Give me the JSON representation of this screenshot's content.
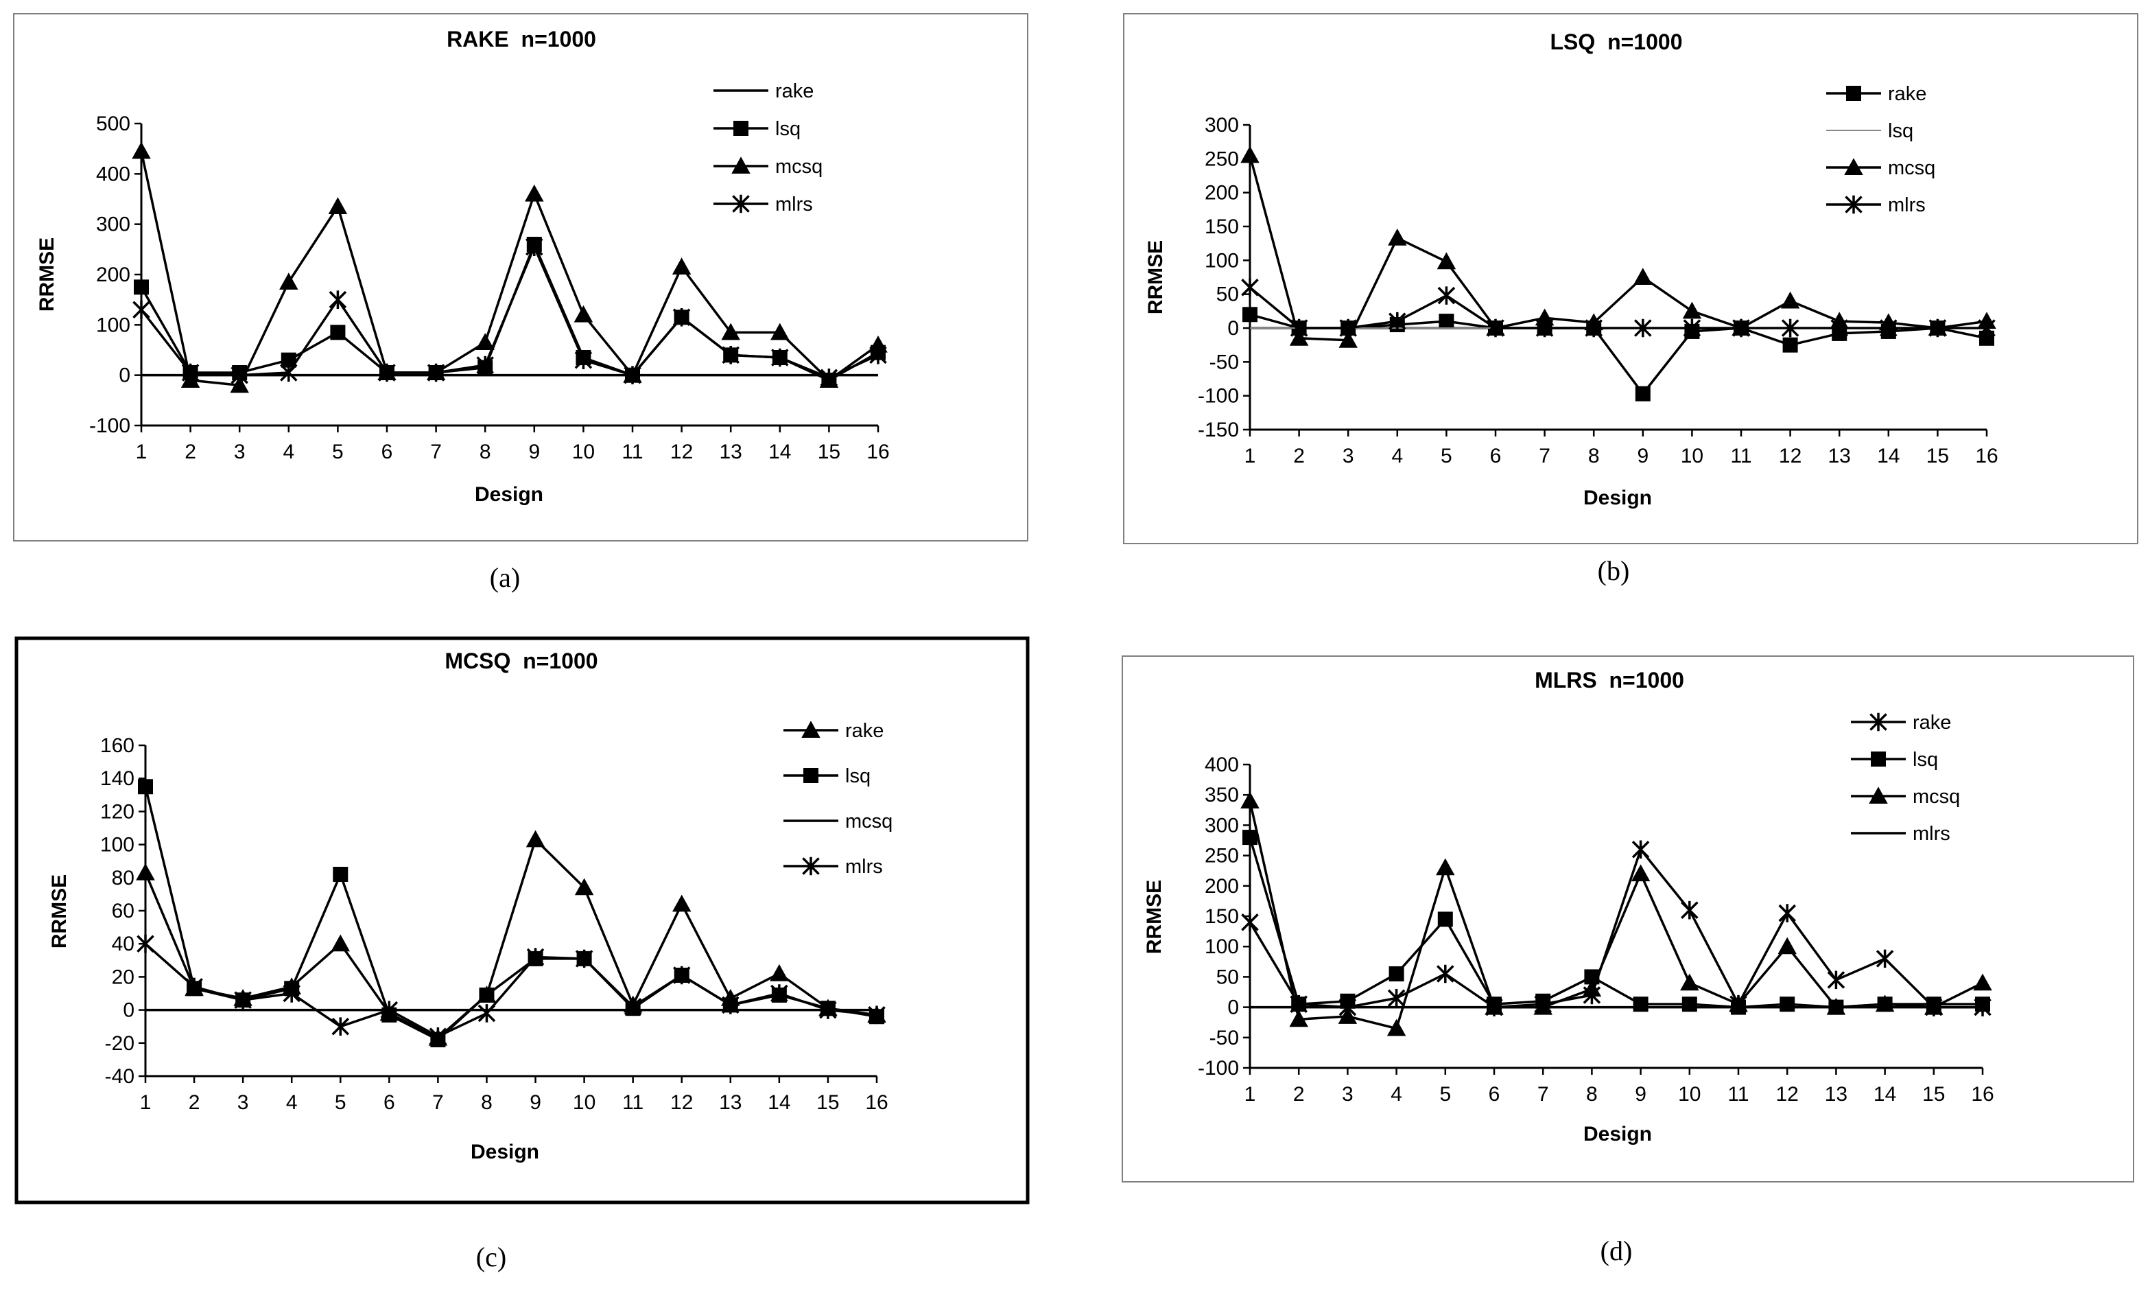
{
  "chart_data": [
    {
      "id": "a",
      "type": "line",
      "title": "RAKE  n=1000",
      "caption": "(a)",
      "xlabel": "Design",
      "ylabel": "RRMSE",
      "categories": [
        "1",
        "2",
        "3",
        "4",
        "5",
        "6",
        "7",
        "8",
        "9",
        "10",
        "11",
        "12",
        "13",
        "14",
        "15",
        "16"
      ],
      "ylim": [
        -100,
        500
      ],
      "yticks": [
        -100,
        0,
        100,
        200,
        300,
        400,
        500
      ],
      "series": [
        {
          "name": "rake",
          "marker": "none",
          "values": [
            0,
            0,
            0,
            0,
            0,
            0,
            0,
            0,
            0,
            0,
            0,
            0,
            0,
            0,
            0,
            0
          ]
        },
        {
          "name": "lsq",
          "marker": "square",
          "values": [
            175,
            5,
            5,
            30,
            85,
            5,
            5,
            15,
            260,
            35,
            0,
            115,
            40,
            35,
            -10,
            45
          ]
        },
        {
          "name": "mcsq",
          "marker": "triangle",
          "values": [
            445,
            -10,
            -20,
            185,
            335,
            5,
            5,
            65,
            360,
            120,
            0,
            215,
            85,
            85,
            -10,
            60
          ]
        },
        {
          "name": "mlrs",
          "marker": "star",
          "values": [
            130,
            5,
            0,
            5,
            150,
            5,
            5,
            20,
            255,
            30,
            0,
            115,
            40,
            35,
            -5,
            40
          ]
        }
      ]
    },
    {
      "id": "b",
      "type": "line",
      "title": "LSQ  n=1000",
      "caption": "(b)",
      "xlabel": "Design",
      "ylabel": "RRMSE",
      "categories": [
        "1",
        "2",
        "3",
        "4",
        "5",
        "6",
        "7",
        "8",
        "9",
        "10",
        "11",
        "12",
        "13",
        "14",
        "15",
        "16"
      ],
      "ylim": [
        -150,
        300
      ],
      "yticks": [
        -150,
        -100,
        -50,
        0,
        50,
        100,
        150,
        200,
        250,
        300
      ],
      "series": [
        {
          "name": "rake",
          "marker": "square",
          "values": [
            20,
            0,
            0,
            5,
            10,
            0,
            0,
            0,
            -97,
            -5,
            0,
            -25,
            -8,
            -5,
            0,
            -15
          ]
        },
        {
          "name": "lsq",
          "marker": "none",
          "thin": true,
          "values": [
            0,
            0,
            0,
            0,
            0,
            0,
            0,
            0,
            0,
            0,
            0,
            0,
            0,
            0,
            0,
            0
          ]
        },
        {
          "name": "mcsq",
          "marker": "triangle",
          "values": [
            255,
            -15,
            -18,
            133,
            98,
            0,
            15,
            8,
            75,
            25,
            0,
            40,
            10,
            8,
            0,
            10
          ]
        },
        {
          "name": "mlrs",
          "marker": "star",
          "values": [
            60,
            0,
            0,
            10,
            48,
            0,
            0,
            0,
            0,
            0,
            0,
            0,
            0,
            0,
            0,
            0
          ]
        }
      ]
    },
    {
      "id": "c",
      "type": "line",
      "title": "MCSQ  n=1000",
      "caption": "(c)",
      "xlabel": "Design",
      "ylabel": "RRMSE",
      "categories": [
        "1",
        "2",
        "3",
        "4",
        "5",
        "6",
        "7",
        "8",
        "9",
        "10",
        "11",
        "12",
        "13",
        "14",
        "15",
        "16"
      ],
      "ylim": [
        -40,
        160
      ],
      "yticks": [
        -40,
        -20,
        0,
        20,
        40,
        60,
        80,
        100,
        120,
        140,
        160
      ],
      "series": [
        {
          "name": "rake",
          "marker": "triangle",
          "values": [
            83,
            13,
            7,
            14,
            40,
            -2,
            -17,
            9,
            103,
            74,
            3,
            64,
            7,
            22,
            1,
            -3
          ]
        },
        {
          "name": "lsq",
          "marker": "square",
          "values": [
            135,
            13,
            6,
            13,
            82,
            -3,
            -18,
            9,
            31,
            31,
            1,
            21,
            3,
            9,
            1,
            -4
          ]
        },
        {
          "name": "mcsq",
          "marker": "none",
          "values": [
            0,
            0,
            0,
            0,
            0,
            0,
            0,
            0,
            0,
            0,
            0,
            0,
            0,
            0,
            0,
            0
          ]
        },
        {
          "name": "mlrs",
          "marker": "star",
          "values": [
            40,
            14,
            6,
            10,
            -10,
            0,
            -16,
            -2,
            32,
            31,
            2,
            21,
            3,
            10,
            0,
            -3
          ]
        }
      ]
    },
    {
      "id": "d",
      "type": "line",
      "title": "MLRS  n=1000",
      "caption": "(d)",
      "xlabel": "Design",
      "ylabel": "RRMSE",
      "categories": [
        "1",
        "2",
        "3",
        "4",
        "5",
        "6",
        "7",
        "8",
        "9",
        "10",
        "11",
        "12",
        "13",
        "14",
        "15",
        "16"
      ],
      "ylim": [
        -100,
        400
      ],
      "yticks": [
        -100,
        -50,
        0,
        50,
        100,
        150,
        200,
        250,
        300,
        350,
        400
      ],
      "series": [
        {
          "name": "rake",
          "marker": "star",
          "values": [
            140,
            5,
            0,
            15,
            55,
            0,
            5,
            20,
            260,
            160,
            5,
            155,
            45,
            80,
            0,
            0
          ]
        },
        {
          "name": "lsq",
          "marker": "square",
          "values": [
            280,
            5,
            10,
            55,
            145,
            5,
            10,
            50,
            5,
            5,
            0,
            5,
            0,
            5,
            5,
            5
          ]
        },
        {
          "name": "mcsq",
          "marker": "triangle",
          "values": [
            340,
            -20,
            -15,
            -35,
            230,
            0,
            0,
            30,
            220,
            40,
            5,
            100,
            0,
            5,
            0,
            40
          ]
        },
        {
          "name": "mlrs",
          "marker": "none",
          "values": [
            0,
            0,
            0,
            0,
            0,
            0,
            0,
            0,
            0,
            0,
            0,
            0,
            0,
            0,
            0,
            0
          ]
        }
      ]
    }
  ]
}
